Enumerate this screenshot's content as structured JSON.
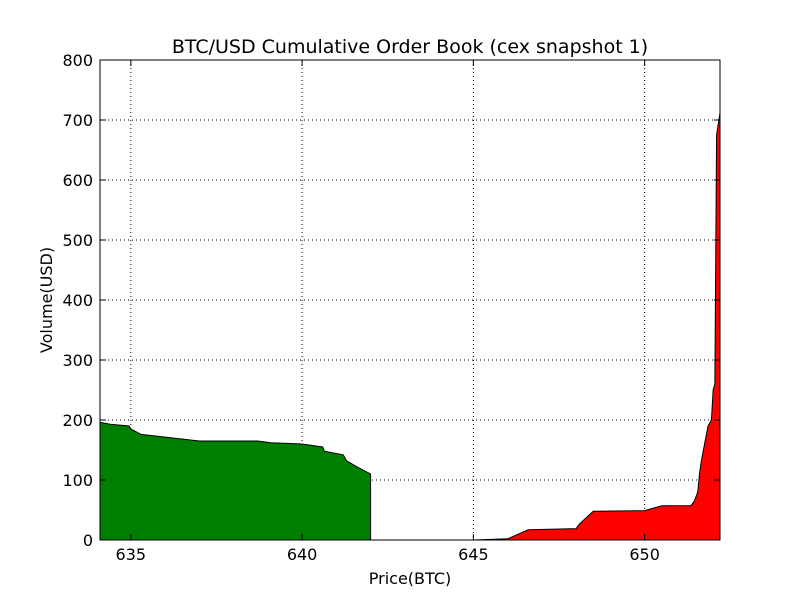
{
  "chart_data": {
    "type": "area",
    "title": "BTC/USD Cumulative Order Book (cex snapshot 1)",
    "xlabel": "Price(BTC)",
    "ylabel": "Volume(USD)",
    "xlim": [
      634.1,
      652.2
    ],
    "ylim": [
      0,
      800
    ],
    "xticks": [
      635,
      640,
      645,
      650
    ],
    "yticks": [
      0,
      100,
      200,
      300,
      400,
      500,
      600,
      700,
      800
    ],
    "grid": true,
    "series": [
      {
        "side": "bids",
        "color": "#008000",
        "points": [
          [
            634.1,
            196
          ],
          [
            634.4,
            193
          ],
          [
            634.95,
            190
          ],
          [
            635.0,
            185
          ],
          [
            635.3,
            176
          ],
          [
            637.0,
            165
          ],
          [
            638.7,
            165
          ],
          [
            639.1,
            162
          ],
          [
            640.0,
            160
          ],
          [
            640.6,
            155
          ],
          [
            640.65,
            148
          ],
          [
            641.2,
            142
          ],
          [
            641.3,
            132
          ],
          [
            641.6,
            122
          ],
          [
            642.0,
            110
          ]
        ]
      },
      {
        "side": "asks",
        "color": "#ff0000",
        "points": [
          [
            645.0,
            0
          ],
          [
            646.0,
            2
          ],
          [
            646.6,
            17
          ],
          [
            648.0,
            19
          ],
          [
            648.1,
            27
          ],
          [
            648.5,
            48
          ],
          [
            650.0,
            49
          ],
          [
            650.5,
            57
          ],
          [
            651.35,
            57
          ],
          [
            651.45,
            65
          ],
          [
            651.55,
            80
          ],
          [
            651.6,
            110
          ],
          [
            651.65,
            130
          ],
          [
            651.75,
            160
          ],
          [
            651.85,
            190
          ],
          [
            651.95,
            200
          ],
          [
            652.0,
            250
          ],
          [
            652.05,
            260
          ],
          [
            652.1,
            675
          ],
          [
            652.2,
            712
          ]
        ]
      }
    ]
  }
}
